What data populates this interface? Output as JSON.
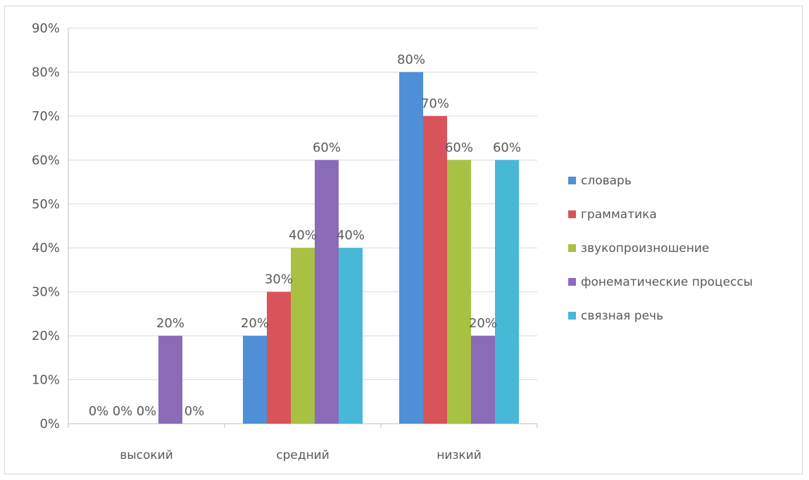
{
  "chart_data": {
    "type": "bar",
    "categories": [
      "высокий",
      "средний",
      "низкий"
    ],
    "series": [
      {
        "name": "словарь",
        "color": "#4f8fd6",
        "values": [
          0,
          20,
          80
        ],
        "labels": [
          "0%",
          "20%",
          "80%"
        ]
      },
      {
        "name": "грамматика",
        "color": "#d9545a",
        "values": [
          0,
          30,
          70
        ],
        "labels": [
          "0%",
          "30%",
          "70%"
        ]
      },
      {
        "name": "звукопроизношение",
        "color": "#a9c142",
        "values": [
          0,
          40,
          60
        ],
        "labels": [
          "0%",
          "40%",
          "60%"
        ]
      },
      {
        "name": "фонематические процессы",
        "color": "#8a6bb8",
        "values": [
          20,
          60,
          20
        ],
        "labels": [
          "20%",
          "60%",
          "20%"
        ]
      },
      {
        "name": "связная речь",
        "color": "#47b8d8",
        "values": [
          0,
          40,
          60
        ],
        "labels": [
          "0%",
          "40%",
          "60%"
        ]
      }
    ],
    "yticks": [
      "0%",
      "10%",
      "20%",
      "30%",
      "40%",
      "50%",
      "60%",
      "70%",
      "80%",
      "90%"
    ],
    "ylim": [
      0,
      90
    ],
    "grid": true,
    "legend_position": "right"
  }
}
